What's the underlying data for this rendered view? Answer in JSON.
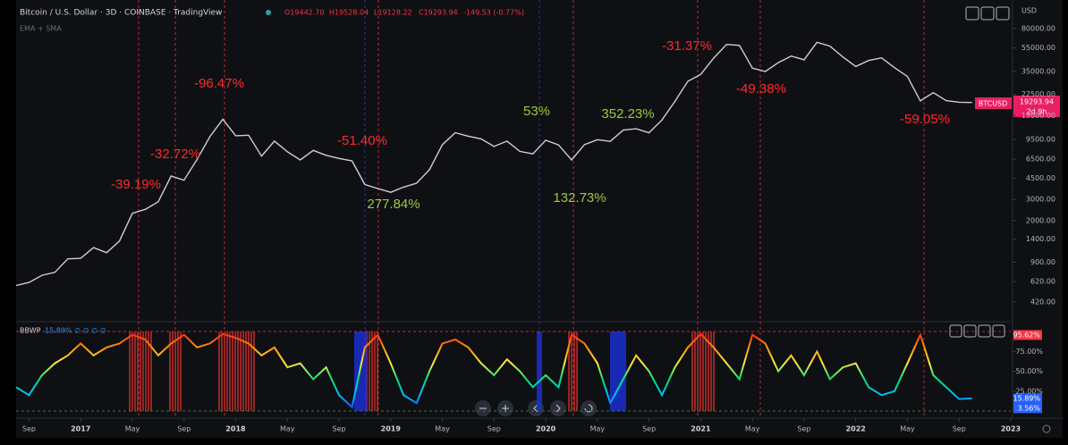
{
  "header": {
    "title": "Bitcoin / U.S. Dollar · 3D · COINBASE · TradingView",
    "open": "O19442.70",
    "high": "H19528.04",
    "low": "L19128.22",
    "close": "C19293.94",
    "change": "-149.53 (-0.77%)",
    "indicators": "EMA + SMA",
    "currency": "USD"
  },
  "price_marker": {
    "symbol": "BTCUSD",
    "price": "19293.94",
    "countdown": "2d 9h"
  },
  "annotations": [
    {
      "text": "-39.19%",
      "color": "#ff2a2a"
    },
    {
      "text": "-32.72%",
      "color": "#ff2a2a"
    },
    {
      "text": "-96.47%",
      "color": "#ff2a2a"
    },
    {
      "text": "-51.40%",
      "color": "#ff2a2a"
    },
    {
      "text": "277.84%",
      "color": "#9ccc3c"
    },
    {
      "text": "53%",
      "color": "#9ccc3c"
    },
    {
      "text": "352.23%",
      "color": "#9ccc3c"
    },
    {
      "text": "132.73%",
      "color": "#9ccc3c"
    },
    {
      "text": "-31.37%",
      "color": "#ff2a2a"
    },
    {
      "text": "-49.38%",
      "color": "#ff2a2a"
    },
    {
      "text": "-59.05%",
      "color": "#ff2a2a"
    }
  ],
  "chart_data": [
    {
      "type": "line",
      "log_scale": true,
      "color": "#cfcfd4",
      "x": [
        "2016-08",
        "2016-09",
        "2016-10",
        "2016-11",
        "2016-12",
        "2017-01",
        "2017-02",
        "2017-03",
        "2017-04",
        "2017-05",
        "2017-06",
        "2017-07",
        "2017-08",
        "2017-09",
        "2017-10",
        "2017-11",
        "2017-12",
        "2018-01",
        "2018-02",
        "2018-03",
        "2018-04",
        "2018-05",
        "2018-06",
        "2018-07",
        "2018-08",
        "2018-09",
        "2018-10",
        "2018-11",
        "2018-12",
        "2019-01",
        "2019-02",
        "2019-03",
        "2019-04",
        "2019-05",
        "2019-06",
        "2019-07",
        "2019-08",
        "2019-09",
        "2019-10",
        "2019-11",
        "2019-12",
        "2020-01",
        "2020-02",
        "2020-03",
        "2020-04",
        "2020-05",
        "2020-06",
        "2020-07",
        "2020-08",
        "2020-09",
        "2020-10",
        "2020-11",
        "2020-12",
        "2021-01",
        "2021-02",
        "2021-03",
        "2021-04",
        "2021-05",
        "2021-06",
        "2021-07",
        "2021-08",
        "2021-09",
        "2021-10",
        "2021-11",
        "2021-12",
        "2022-01",
        "2022-02",
        "2022-03",
        "2022-04",
        "2022-05",
        "2022-06",
        "2022-07",
        "2022-08",
        "2022-09",
        "2022-10"
      ],
      "values": [
        575,
        610,
        700,
        740,
        960,
        970,
        1190,
        1080,
        1350,
        2300,
        2480,
        2870,
        4700,
        4340,
        6450,
        10000,
        14000,
        10200,
        10300,
        6900,
        9200,
        7500,
        6400,
        7700,
        7000,
        6600,
        6300,
        4000,
        3700,
        3440,
        3800,
        4100,
        5300,
        8600,
        10800,
        10100,
        9600,
        8300,
        9200,
        7550,
        7200,
        9350,
        8550,
        6400,
        8600,
        9450,
        9150,
        11350,
        11650,
        10780,
        13800,
        19700,
        29000,
        33100,
        45200,
        58800,
        57700,
        37300,
        35000,
        41500,
        47100,
        43800,
        61300,
        57000,
        46300,
        38500,
        43200,
        45500,
        37700,
        31800,
        19900,
        23300,
        20000,
        19400,
        19300
      ],
      "xlim": [
        "2016-08",
        "2023-01"
      ],
      "xticks": [
        {
          "value": "2016-09",
          "label": "Sep"
        },
        {
          "value": "2017-01",
          "label": "2017"
        },
        {
          "value": "2017-05",
          "label": "May"
        },
        {
          "value": "2017-09",
          "label": "Sep"
        },
        {
          "value": "2018-01",
          "label": "2018"
        },
        {
          "value": "2018-05",
          "label": "May"
        },
        {
          "value": "2018-09",
          "label": "Sep"
        },
        {
          "value": "2019-01",
          "label": "2019"
        },
        {
          "value": "2019-05",
          "label": "May"
        },
        {
          "value": "2019-09",
          "label": "Sep"
        },
        {
          "value": "2020-01",
          "label": "2020"
        },
        {
          "value": "2020-05",
          "label": "May"
        },
        {
          "value": "2020-09",
          "label": "Sep"
        },
        {
          "value": "2021-01",
          "label": "2021"
        },
        {
          "value": "2021-05",
          "label": "May"
        },
        {
          "value": "2021-09",
          "label": "Sep"
        },
        {
          "value": "2022-01",
          "label": "2022"
        },
        {
          "value": "2022-05",
          "label": "May"
        },
        {
          "value": "2022-09",
          "label": "Sep"
        },
        {
          "value": "2023-01",
          "label": "2023"
        }
      ],
      "ylim": [
        313,
        138000
      ],
      "yticks": [
        {
          "value": 80000,
          "label": "80000.00"
        },
        {
          "value": 55000,
          "label": "55000.00"
        },
        {
          "value": 35000,
          "label": "35000.00"
        },
        {
          "value": 22500,
          "label": "22500.00"
        },
        {
          "value": 15000,
          "label": "15000.00"
        },
        {
          "value": 9500,
          "label": "9500.00"
        },
        {
          "value": 6500,
          "label": "6500.00"
        },
        {
          "value": 4500,
          "label": "4500.00"
        },
        {
          "value": 3000,
          "label": "3000.00"
        },
        {
          "value": 2000,
          "label": "2000.00"
        },
        {
          "value": 1400,
          "label": "1400.00"
        },
        {
          "value": 900,
          "label": "900.00"
        },
        {
          "value": 620,
          "label": "620.00"
        },
        {
          "value": 420,
          "label": "420.00"
        }
      ]
    },
    {
      "type": "line",
      "name": "BBWP",
      "legend": "15.89% ∅ ∅ ∅ ∅",
      "colors": [
        "#ff1a1a",
        "#ff9800",
        "#ffeb3b",
        "#00e676",
        "#00bfff",
        "#1e3cff"
      ],
      "x": [
        "2016-08",
        "2016-09",
        "2016-10",
        "2016-11",
        "2016-12",
        "2017-01",
        "2017-02",
        "2017-03",
        "2017-04",
        "2017-05",
        "2017-06",
        "2017-07",
        "2017-08",
        "2017-09",
        "2017-10",
        "2017-11",
        "2017-12",
        "2018-01",
        "2018-02",
        "2018-03",
        "2018-04",
        "2018-05",
        "2018-06",
        "2018-07",
        "2018-08",
        "2018-09",
        "2018-10",
        "2018-11",
        "2018-12",
        "2019-01",
        "2019-02",
        "2019-03",
        "2019-04",
        "2019-05",
        "2019-06",
        "2019-07",
        "2019-08",
        "2019-09",
        "2019-10",
        "2019-11",
        "2019-12",
        "2020-01",
        "2020-02",
        "2020-03",
        "2020-04",
        "2020-05",
        "2020-06",
        "2020-07",
        "2020-08",
        "2020-09",
        "2020-10",
        "2020-11",
        "2020-12",
        "2021-01",
        "2021-02",
        "2021-03",
        "2021-04",
        "2021-05",
        "2021-06",
        "2021-07",
        "2021-08",
        "2021-09",
        "2021-10",
        "2021-11",
        "2021-12",
        "2022-01",
        "2022-02",
        "2022-03",
        "2022-04",
        "2022-05",
        "2022-06",
        "2022-07",
        "2022-08",
        "2022-09",
        "2022-10"
      ],
      "values": [
        30,
        20,
        45,
        60,
        70,
        85,
        70,
        80,
        85,
        96,
        90,
        70,
        85,
        96,
        80,
        85,
        97,
        92,
        85,
        70,
        80,
        55,
        60,
        40,
        55,
        20,
        5,
        80,
        96,
        60,
        20,
        10,
        50,
        85,
        90,
        80,
        60,
        45,
        65,
        50,
        30,
        45,
        30,
        96,
        85,
        60,
        10,
        40,
        70,
        50,
        20,
        55,
        80,
        97,
        80,
        60,
        40,
        96,
        85,
        50,
        70,
        45,
        75,
        40,
        55,
        60,
        30,
        20,
        25,
        60,
        96,
        45,
        30,
        15,
        16
      ],
      "ylim": [
        0,
        100
      ],
      "yticks": [
        {
          "value": 75,
          "label": "75.00%"
        },
        {
          "value": 50,
          "label": "50.00%"
        },
        {
          "value": 25,
          "label": "25.00%"
        }
      ],
      "markers": [
        {
          "value": 95.62,
          "label": "95.62%",
          "color": "#f23645"
        },
        {
          "value": 15.89,
          "label": "15.89%",
          "color": "#2962ff"
        },
        {
          "value": 3.56,
          "label": "3.56%",
          "color": "#2962ff"
        }
      ]
    }
  ]
}
